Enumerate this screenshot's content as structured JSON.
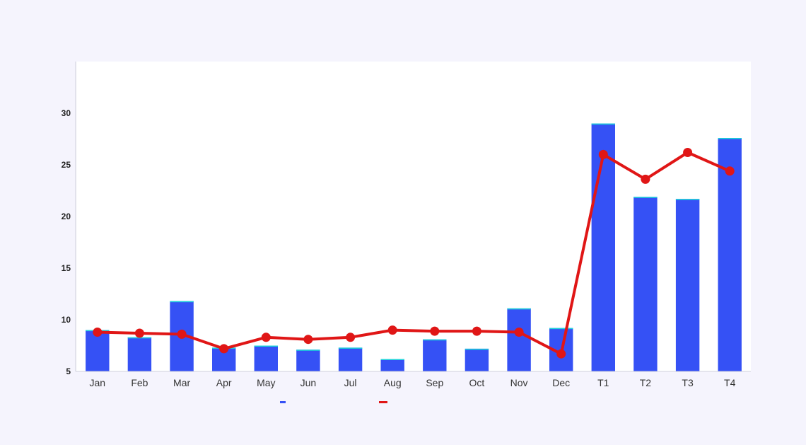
{
  "colors": {
    "background": "#f5f4fd",
    "plot_area": "#ffffff",
    "bar": "#3551f5",
    "bar_top": "#19d3d8",
    "line": "#e01616",
    "axis": "#cfd0dc"
  },
  "chart_data": {
    "type": "bar",
    "categories": [
      "Jan",
      "Feb",
      "Mar",
      "Apr",
      "May",
      "Jun",
      "Jul",
      "Aug",
      "Sep",
      "Oct",
      "Nov",
      "Dec",
      "T1",
      "T2",
      "T3",
      "T4"
    ],
    "series": [
      {
        "type": "bar",
        "values": [
          9.0,
          8.3,
          11.8,
          7.3,
          7.5,
          7.1,
          7.3,
          6.2,
          8.1,
          7.2,
          11.1,
          9.2,
          29.0,
          21.9,
          21.7,
          27.6
        ]
      },
      {
        "type": "line",
        "values": [
          8.8,
          8.7,
          8.6,
          7.2,
          8.3,
          8.1,
          8.3,
          9.0,
          8.9,
          8.9,
          8.8,
          6.7,
          26.0,
          23.6,
          26.2,
          24.4
        ]
      }
    ],
    "yticks": [
      5,
      10,
      15,
      20,
      25,
      30
    ],
    "ylim": [
      5,
      35
    ],
    "grid": false,
    "legend": "bottom"
  }
}
